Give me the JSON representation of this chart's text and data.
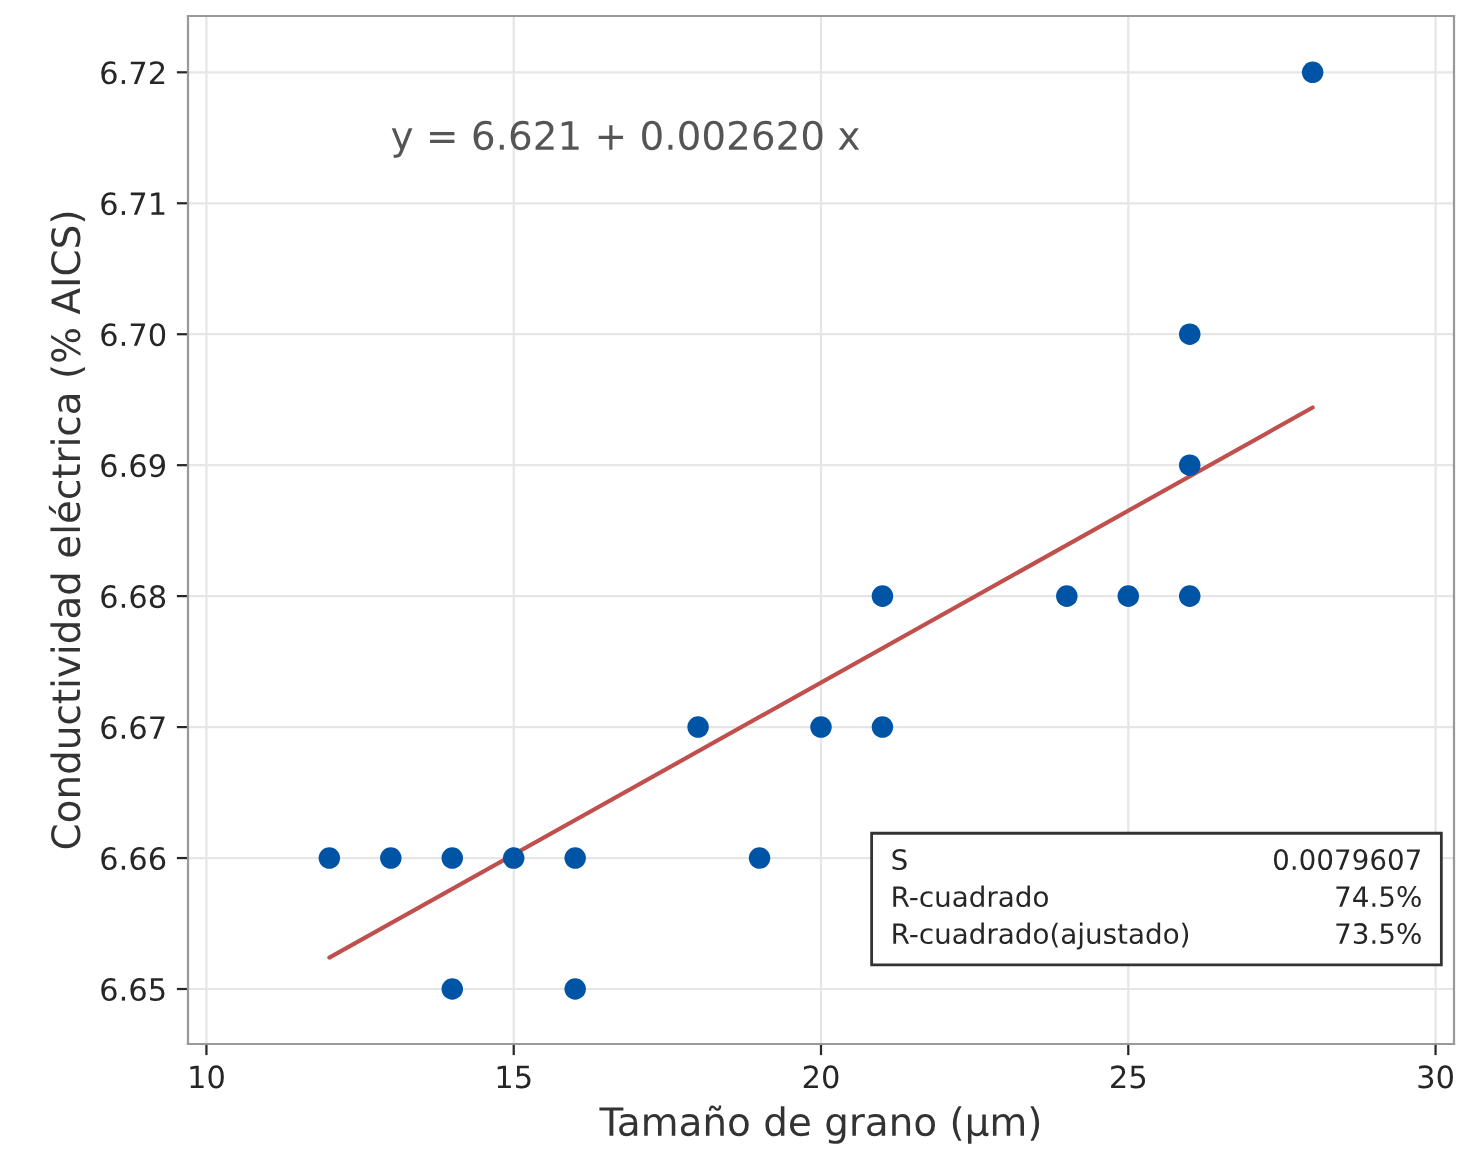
{
  "chart_data": {
    "type": "scatter",
    "xlabel": "Tamaño de grano (µm)",
    "ylabel": "Conductividad eléctrica (% AICS)",
    "xlim": [
      9.7,
      30.3
    ],
    "xticks": [
      10,
      15,
      20,
      25,
      30
    ],
    "ylim": [
      6.6458,
      6.7243
    ],
    "yticks": [
      6.65,
      6.66,
      6.67,
      6.68,
      6.69,
      {
        "value": 6.7,
        "label": "6.70"
      },
      6.71,
      6.72
    ],
    "grid": true,
    "series": [
      {
        "marker": "circle",
        "color": "#0054a6",
        "x": [
          12,
          13,
          14,
          15,
          16,
          19,
          14,
          16,
          18,
          20,
          21,
          21,
          24,
          25,
          26,
          26,
          26,
          28
        ],
        "values": [
          6.66,
          6.66,
          6.66,
          6.66,
          6.66,
          6.66,
          6.65,
          6.65,
          6.67,
          6.67,
          6.67,
          6.68,
          6.68,
          6.68,
          6.68,
          6.69,
          6.7,
          6.72
        ]
      },
      {
        "type": "line",
        "marker": "none",
        "color": "#c0504d",
        "x": [
          12,
          28
        ],
        "values": [
          6.6524,
          6.6944
        ]
      }
    ],
    "annotations": [
      "y = 6.621 + 0.002620 x",
      "S",
      "0.0079607",
      "R-cuadrado",
      "74.5%",
      "R-cuadrado(ajustado)",
      "73.5%"
    ]
  }
}
